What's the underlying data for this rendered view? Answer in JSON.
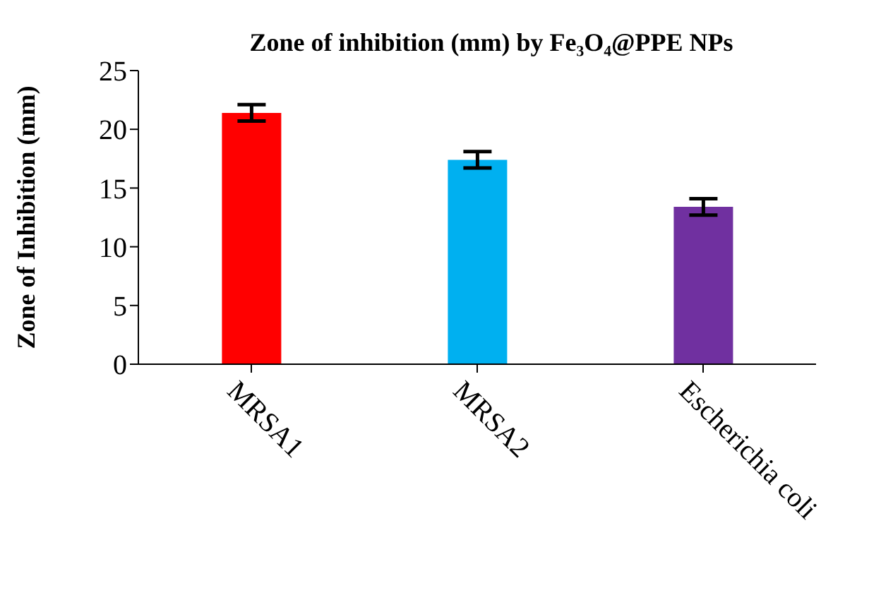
{
  "chart_data": {
    "type": "bar",
    "title": "Zone of inhibition (mm) by Fe₃O₄@PPE NPs",
    "ylabel": "Zone of Inhibition (mm)",
    "categories": [
      "MRSA1",
      "MRSA2",
      "Escherichia coli"
    ],
    "values": [
      21.4,
      17.4,
      13.4
    ],
    "colors": [
      "#ff0000",
      "#00b0f0",
      "#7030a0"
    ],
    "errors": [
      0.7,
      0.7,
      0.7
    ],
    "ylim": [
      0,
      25
    ],
    "yticks": [
      0,
      5,
      10,
      15,
      20,
      25
    ]
  }
}
